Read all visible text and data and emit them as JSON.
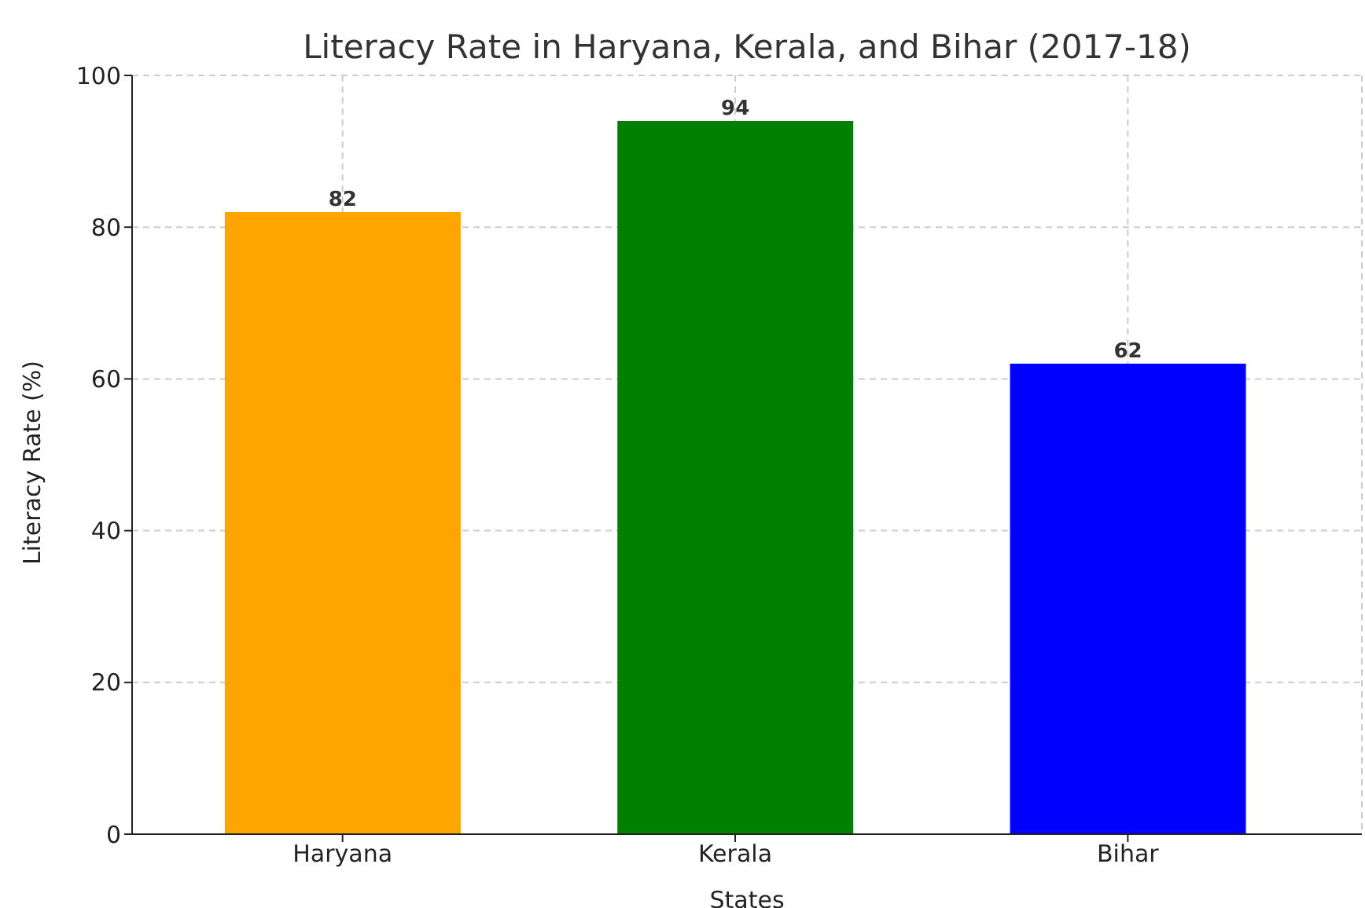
{
  "chart_data": {
    "type": "bar",
    "title": "Literacy Rate in Haryana, Kerala, and Bihar (2017-18)",
    "xlabel": "States",
    "ylabel": "Literacy Rate (%)",
    "categories": [
      "Haryana",
      "Kerala",
      "Bihar"
    ],
    "values": [
      82,
      94,
      62
    ],
    "colors": [
      "#ffa500",
      "#008000",
      "#0000ff"
    ],
    "ylim": [
      0,
      100
    ],
    "yticks": [
      0,
      20,
      40,
      60,
      80,
      100
    ],
    "grid": true,
    "data_labels": true
  }
}
